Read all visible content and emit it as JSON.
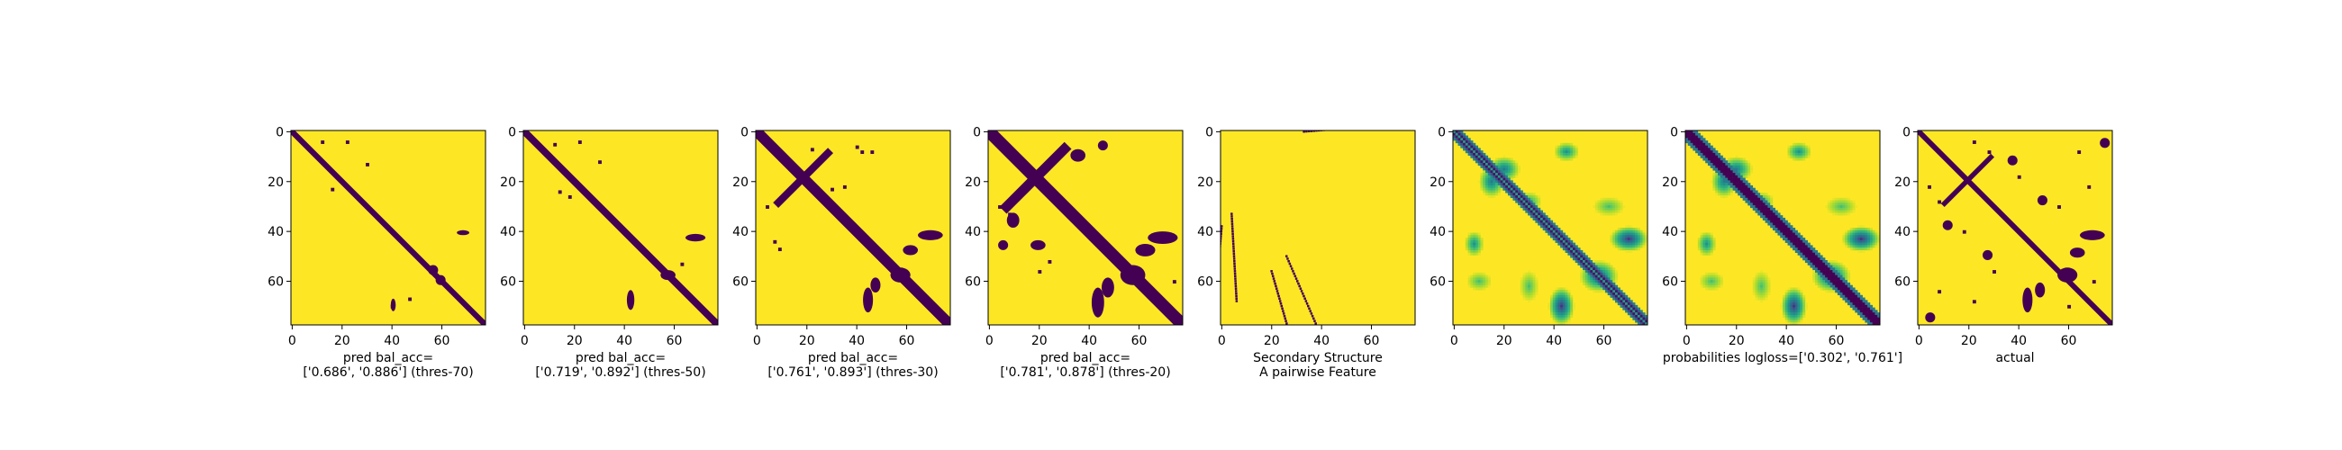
{
  "colors": {
    "background": "#fde725",
    "contact": "#440154",
    "axis": "#000000"
  },
  "chart_data": [
    {
      "type": "heatmap",
      "panel": "pred-thres-70",
      "caption": [
        "pred bal_acc=",
        "['0.686', '0.886'] (thres-70)"
      ],
      "xticks": [
        0,
        20,
        40,
        60
      ],
      "yticks": [
        0,
        20,
        40,
        60
      ],
      "grid": false,
      "size": 78,
      "mode": "binary",
      "diag_half_width": 1.6,
      "blobs": [
        {
          "cx": 69,
          "cy": 41,
          "rx": 2.5,
          "ry": 1.0
        },
        {
          "cx": 41,
          "cy": 70,
          "rx": 1.0,
          "ry": 2.5
        },
        {
          "cx": 57,
          "cy": 56,
          "rx": 2.0,
          "ry": 2.0
        },
        {
          "cx": 60,
          "cy": 60,
          "rx": 2.0,
          "ry": 2.0
        }
      ],
      "dots": [
        [
          12,
          4
        ],
        [
          22,
          4
        ],
        [
          30,
          13
        ],
        [
          16,
          23
        ],
        [
          40,
          70
        ],
        [
          47,
          67
        ]
      ]
    },
    {
      "type": "heatmap",
      "panel": "pred-thres-50",
      "caption": [
        "pred bal_acc=",
        "['0.719', '0.892'] (thres-50)"
      ],
      "xticks": [
        0,
        20,
        40,
        60
      ],
      "yticks": [
        0,
        20,
        40,
        60
      ],
      "grid": false,
      "size": 78,
      "mode": "binary",
      "diag_half_width": 2.0,
      "blobs": [
        {
          "cx": 69,
          "cy": 43,
          "rx": 4.0,
          "ry": 1.5
        },
        {
          "cx": 43,
          "cy": 68,
          "rx": 1.5,
          "ry": 4.0
        },
        {
          "cx": 58,
          "cy": 58,
          "rx": 3.0,
          "ry": 2.0
        }
      ],
      "dots": [
        [
          12,
          5
        ],
        [
          22,
          4
        ],
        [
          30,
          12
        ],
        [
          14,
          24
        ],
        [
          18,
          26
        ],
        [
          63,
          53
        ]
      ]
    },
    {
      "type": "heatmap",
      "panel": "pred-thres-30",
      "caption": [
        "pred bal_acc=",
        "['0.761', '0.893'] (thres-30)"
      ],
      "xticks": [
        0,
        20,
        40,
        60
      ],
      "yticks": [
        0,
        20,
        40,
        60
      ],
      "grid": false,
      "size": 78,
      "mode": "binary",
      "diag_half_width": 3.0,
      "antidiag": {
        "sum": 38,
        "from": 8,
        "to": 30,
        "half_width": 1.5
      },
      "blobs": [
        {
          "cx": 70,
          "cy": 42,
          "rx": 5.0,
          "ry": 2.0
        },
        {
          "cx": 45,
          "cy": 68,
          "rx": 2.0,
          "ry": 5.0
        },
        {
          "cx": 58,
          "cy": 58,
          "rx": 4.0,
          "ry": 3.0
        },
        {
          "cx": 62,
          "cy": 48,
          "rx": 3.0,
          "ry": 2.0
        },
        {
          "cx": 48,
          "cy": 62,
          "rx": 2.0,
          "ry": 3.0
        }
      ],
      "dots": [
        [
          22,
          7
        ],
        [
          40,
          6
        ],
        [
          42,
          8
        ],
        [
          46,
          8
        ],
        [
          4,
          30
        ],
        [
          7,
          44
        ],
        [
          9,
          47
        ],
        [
          30,
          23
        ],
        [
          35,
          22
        ]
      ]
    },
    {
      "type": "heatmap",
      "panel": "pred-thres-20",
      "caption": [
        "pred bal_acc=",
        "['0.781', '0.878'] (thres-20)"
      ],
      "xticks": [
        0,
        20,
        40,
        60
      ],
      "yticks": [
        0,
        20,
        40,
        60
      ],
      "grid": false,
      "size": 78,
      "mode": "binary",
      "diag_half_width": 3.5,
      "antidiag": {
        "sum": 38,
        "from": 6,
        "to": 32,
        "half_width": 2.0
      },
      "blobs": [
        {
          "cx": 70,
          "cy": 43,
          "rx": 6.0,
          "ry": 2.5
        },
        {
          "cx": 44,
          "cy": 69,
          "rx": 2.5,
          "ry": 6.0
        },
        {
          "cx": 58,
          "cy": 58,
          "rx": 5.0,
          "ry": 4.0
        },
        {
          "cx": 63,
          "cy": 48,
          "rx": 4.0,
          "ry": 2.5
        },
        {
          "cx": 48,
          "cy": 63,
          "rx": 2.5,
          "ry": 4.0
        },
        {
          "cx": 36,
          "cy": 10,
          "rx": 3.0,
          "ry": 2.5
        },
        {
          "cx": 10,
          "cy": 36,
          "rx": 2.5,
          "ry": 3.0
        },
        {
          "cx": 46,
          "cy": 6,
          "rx": 2.0,
          "ry": 2.0
        },
        {
          "cx": 6,
          "cy": 46,
          "rx": 2.0,
          "ry": 2.0
        },
        {
          "cx": 20,
          "cy": 46,
          "rx": 3.0,
          "ry": 2.0
        }
      ],
      "dots": [
        [
          4,
          30
        ],
        [
          8,
          33
        ],
        [
          20,
          56
        ],
        [
          24,
          52
        ],
        [
          74,
          60
        ]
      ]
    },
    {
      "type": "heatmap",
      "panel": "secondary-structure",
      "caption": [
        "Secondary Structure",
        "A pairwise Feature"
      ],
      "xticks": [
        0,
        20,
        40,
        60
      ],
      "yticks": [
        0,
        20,
        40,
        60
      ],
      "grid": false,
      "size": 78,
      "mode": "strand",
      "segments": [
        [
          33,
          0,
          36,
          -3
        ],
        [
          0,
          38,
          -3,
          36
        ],
        [
          20,
          56,
          17,
          59
        ],
        [
          26,
          50,
          23,
          53
        ],
        [
          4,
          33,
          2,
          35
        ]
      ]
    },
    {
      "type": "heatmap",
      "panel": "probabilities-green",
      "caption": [
        "",
        ""
      ],
      "xticks": [
        0,
        20,
        40,
        60
      ],
      "yticks": [
        0,
        20,
        40,
        60
      ],
      "grid": false,
      "size": 78,
      "mode": "prob",
      "diag_mode": "hollow",
      "blobs": [
        {
          "cx": 20,
          "cy": 15,
          "rx": 5,
          "ry": 4,
          "v": 0.6
        },
        {
          "cx": 15,
          "cy": 20,
          "rx": 4,
          "ry": 5,
          "v": 0.6
        },
        {
          "cx": 45,
          "cy": 8,
          "rx": 4,
          "ry": 3,
          "v": 0.5
        },
        {
          "cx": 8,
          "cy": 45,
          "rx": 3,
          "ry": 4,
          "v": 0.5
        },
        {
          "cx": 70,
          "cy": 43,
          "rx": 6,
          "ry": 4,
          "v": 0.85
        },
        {
          "cx": 43,
          "cy": 70,
          "rx": 4,
          "ry": 6,
          "v": 0.85
        },
        {
          "cx": 58,
          "cy": 58,
          "rx": 6,
          "ry": 5,
          "v": 0.7
        },
        {
          "cx": 30,
          "cy": 28,
          "rx": 4,
          "ry": 3,
          "v": 0.4
        },
        {
          "cx": 62,
          "cy": 30,
          "rx": 5,
          "ry": 3,
          "v": 0.3
        },
        {
          "cx": 30,
          "cy": 62,
          "rx": 3,
          "ry": 5,
          "v": 0.3
        },
        {
          "cx": 10,
          "cy": 60,
          "rx": 4,
          "ry": 3,
          "v": 0.3
        }
      ]
    },
    {
      "type": "heatmap",
      "panel": "probabilities-logloss",
      "caption": [
        "probabilities logloss=['0.302', '0.761']",
        ""
      ],
      "xticks": [
        0,
        20,
        40,
        60
      ],
      "yticks": [
        0,
        20,
        40,
        60
      ],
      "grid": false,
      "size": 78,
      "mode": "prob",
      "diag_mode": "solid",
      "blobs": [
        {
          "cx": 20,
          "cy": 15,
          "rx": 5,
          "ry": 4,
          "v": 0.6
        },
        {
          "cx": 15,
          "cy": 20,
          "rx": 4,
          "ry": 5,
          "v": 0.6
        },
        {
          "cx": 45,
          "cy": 8,
          "rx": 4,
          "ry": 3,
          "v": 0.5
        },
        {
          "cx": 8,
          "cy": 45,
          "rx": 3,
          "ry": 4,
          "v": 0.5
        },
        {
          "cx": 70,
          "cy": 43,
          "rx": 6,
          "ry": 4,
          "v": 0.85
        },
        {
          "cx": 43,
          "cy": 70,
          "rx": 4,
          "ry": 6,
          "v": 0.85
        },
        {
          "cx": 58,
          "cy": 58,
          "rx": 6,
          "ry": 5,
          "v": 0.7
        },
        {
          "cx": 30,
          "cy": 28,
          "rx": 4,
          "ry": 3,
          "v": 0.4
        },
        {
          "cx": 62,
          "cy": 30,
          "rx": 5,
          "ry": 3,
          "v": 0.3
        },
        {
          "cx": 30,
          "cy": 62,
          "rx": 3,
          "ry": 5,
          "v": 0.3
        },
        {
          "cx": 10,
          "cy": 60,
          "rx": 4,
          "ry": 3,
          "v": 0.3
        }
      ]
    },
    {
      "type": "heatmap",
      "panel": "actual",
      "caption": [
        "actual",
        ""
      ],
      "xticks": [
        0,
        20,
        40,
        60
      ],
      "yticks": [
        0,
        20,
        40,
        60
      ],
      "grid": false,
      "size": 78,
      "mode": "binary",
      "diag_half_width": 1.5,
      "antidiag": {
        "sum": 40,
        "from": 10,
        "to": 30,
        "half_width": 1.0
      },
      "blobs": [
        {
          "cx": 70,
          "cy": 42,
          "rx": 5,
          "ry": 2
        },
        {
          "cx": 44,
          "cy": 68,
          "rx": 2,
          "ry": 5
        },
        {
          "cx": 60,
          "cy": 58,
          "rx": 4,
          "ry": 3
        },
        {
          "cx": 64,
          "cy": 49,
          "rx": 3,
          "ry": 2
        },
        {
          "cx": 49,
          "cy": 64,
          "rx": 2,
          "ry": 3
        },
        {
          "cx": 38,
          "cy": 12,
          "rx": 2,
          "ry": 2
        },
        {
          "cx": 12,
          "cy": 38,
          "rx": 2,
          "ry": 2
        },
        {
          "cx": 75,
          "cy": 5,
          "rx": 2,
          "ry": 2
        },
        {
          "cx": 5,
          "cy": 75,
          "rx": 2,
          "ry": 2
        },
        {
          "cx": 28,
          "cy": 50,
          "rx": 2,
          "ry": 2
        },
        {
          "cx": 50,
          "cy": 28,
          "rx": 2,
          "ry": 2
        }
      ],
      "dots": [
        [
          4,
          22
        ],
        [
          22,
          4
        ],
        [
          8,
          28
        ],
        [
          28,
          8
        ],
        [
          64,
          8
        ],
        [
          8,
          64
        ],
        [
          60,
          70
        ],
        [
          70,
          60
        ],
        [
          18,
          40
        ],
        [
          40,
          18
        ],
        [
          56,
          30
        ],
        [
          30,
          56
        ],
        [
          68,
          22
        ],
        [
          22,
          68
        ]
      ]
    }
  ]
}
